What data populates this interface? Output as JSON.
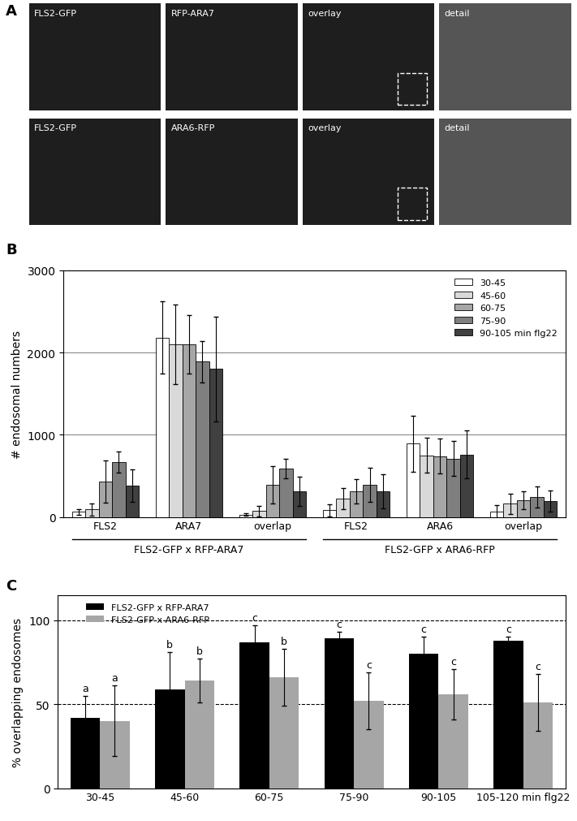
{
  "chart_data": [
    {
      "type": "image_grid",
      "title": "A",
      "rows": [
        [
          "FLS2-GFP",
          "RFP-ARA7",
          "overlay",
          "detail"
        ],
        [
          "FLS2-GFP",
          "ARA6-RFP",
          "overlay",
          "detail"
        ]
      ]
    },
    {
      "type": "bar",
      "title": "B",
      "categories": [
        "FLS2",
        "ARA7",
        "overlap",
        "FLS2",
        "ARA6",
        "overlap"
      ],
      "annotations": [
        "FLS2-GFP x RFP-ARA7",
        "FLS2-GFP x ARA6-RFP"
      ],
      "y_label": "# endosomal numbers",
      "ylim": [
        0,
        3000
      ],
      "yticks": [
        0,
        1000,
        2000,
        3000
      ],
      "grid": true,
      "legend": "upper right",
      "series": [
        {
          "name": "30-45",
          "color": "#ffffff",
          "values": [
            60,
            2180,
            30,
            80,
            890,
            60
          ],
          "errors": [
            30,
            440,
            15,
            70,
            340,
            80
          ]
        },
        {
          "name": "45-60",
          "color": "#d9d9d9",
          "values": [
            90,
            2100,
            70,
            220,
            750,
            160
          ],
          "errors": [
            70,
            480,
            60,
            130,
            210,
            120
          ]
        },
        {
          "name": "60-75",
          "color": "#a6a6a6",
          "values": [
            430,
            2100,
            390,
            310,
            740,
            200
          ],
          "errors": [
            260,
            360,
            230,
            150,
            210,
            110
          ]
        },
        {
          "name": "75-90",
          "color": "#7f7f7f",
          "values": [
            670,
            1890,
            590,
            390,
            710,
            240
          ],
          "errors": [
            130,
            250,
            120,
            210,
            210,
            130
          ]
        },
        {
          "name": "90-105 min flg22",
          "color": "#404040",
          "values": [
            380,
            1800,
            310,
            310,
            760,
            190
          ],
          "errors": [
            200,
            640,
            180,
            210,
            290,
            130
          ]
        }
      ]
    },
    {
      "type": "bar",
      "title": "C",
      "categories": [
        "30-45",
        "45-60",
        "60-75",
        "75-90",
        "90-105",
        "105-120 min flg22"
      ],
      "y_label": "% overlapping endosomes",
      "ylim": [
        0,
        115
      ],
      "yticks": [
        0,
        50,
        100
      ],
      "grid": true,
      "legend": "upper left",
      "series": [
        {
          "name": "FLS2-GFP x RFP-ARA7",
          "color": "#000000",
          "values": [
            42,
            59,
            87,
            89,
            80,
            88
          ],
          "errors": [
            13,
            22,
            10,
            4,
            10,
            2
          ],
          "annotations": [
            "a",
            "b",
            "c",
            "c",
            "c",
            "c"
          ]
        },
        {
          "name": "FLS2-GFP x ARA6-RFP",
          "color": "#a6a6a6",
          "values": [
            40,
            64,
            66,
            52,
            56,
            51
          ],
          "errors": [
            21,
            13,
            17,
            17,
            15,
            17
          ],
          "annotations": [
            "a",
            "b",
            "b",
            "c",
            "c",
            "c"
          ]
        }
      ]
    }
  ]
}
